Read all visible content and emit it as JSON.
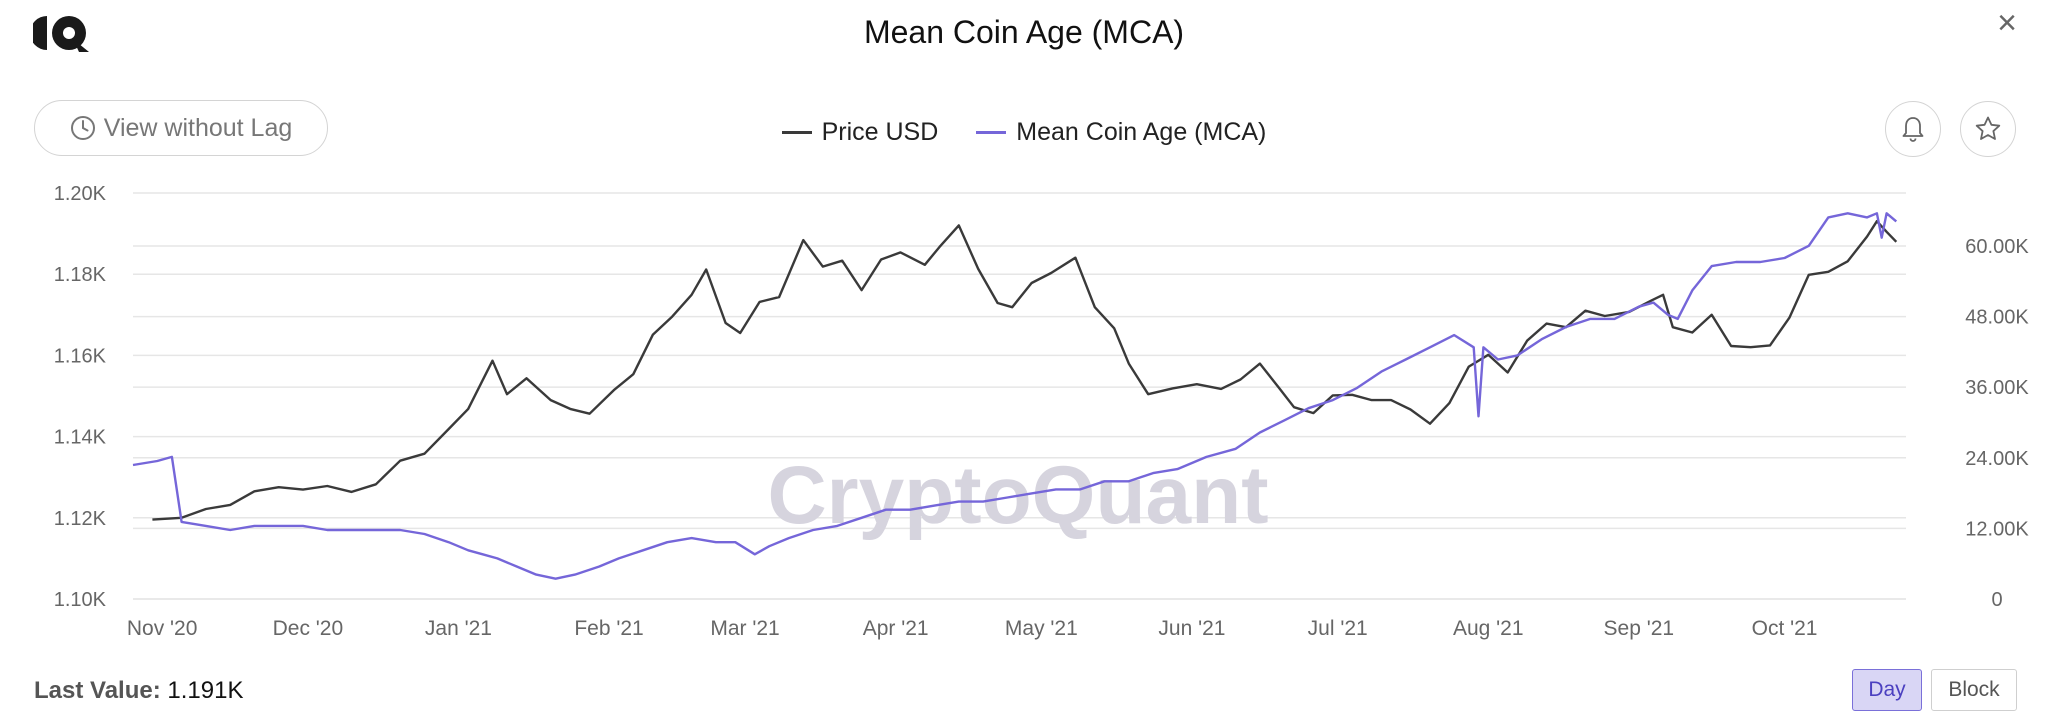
{
  "header": {
    "title": "Mean Coin Age (MCA)",
    "close_label": "×"
  },
  "toolbar": {
    "lag_button_label": "View without Lag"
  },
  "footer": {
    "last_value_label": "Last Value:",
    "last_value": "1.191K",
    "toggle_day": "Day",
    "toggle_block": "Block",
    "active_toggle": "Day"
  },
  "watermark": "CryptoQuant",
  "colors": {
    "price": "#3a3a3a",
    "mca": "#7566d9",
    "grid": "#e6e6e6",
    "axis_text": "#666666",
    "watermark": "#d6d4de"
  },
  "chart_data": {
    "type": "line",
    "title": "Mean Coin Age (MCA)",
    "x_range": [
      "2020-10-26",
      "2021-10-26"
    ],
    "x_ticks": [
      {
        "label": "Nov '20",
        "date": "2020-11-01"
      },
      {
        "label": "Dec '20",
        "date": "2020-12-01"
      },
      {
        "label": "Jan '21",
        "date": "2021-01-01"
      },
      {
        "label": "Feb '21",
        "date": "2021-02-01"
      },
      {
        "label": "Mar '21",
        "date": "2021-03-01"
      },
      {
        "label": "Apr '21",
        "date": "2021-04-01"
      },
      {
        "label": "May '21",
        "date": "2021-05-01"
      },
      {
        "label": "Jun '21",
        "date": "2021-06-01"
      },
      {
        "label": "Jul '21",
        "date": "2021-07-01"
      },
      {
        "label": "Aug '21",
        "date": "2021-08-01"
      },
      {
        "label": "Sep '21",
        "date": "2021-09-01"
      },
      {
        "label": "Oct '21",
        "date": "2021-10-01"
      }
    ],
    "y_left": {
      "min": 1100,
      "max": 1200,
      "ticks": [
        1100,
        1120,
        1140,
        1160,
        1180,
        1200
      ],
      "tick_labels": [
        "1.10K",
        "1.12K",
        "1.14K",
        "1.16K",
        "1.18K",
        "1.20K"
      ]
    },
    "y_right": {
      "min": 0,
      "max": 69000,
      "ticks": [
        0,
        12000,
        24000,
        36000,
        48000,
        60000
      ],
      "tick_labels": [
        "0",
        "12.00K",
        "24.00K",
        "36.00K",
        "48.00K",
        "60.00K"
      ]
    },
    "legend_position": "top-center",
    "grid": true,
    "series": [
      {
        "name": "Price USD",
        "axis": "right",
        "x": [
          "2020-10-30",
          "2020-11-05",
          "2020-11-10",
          "2020-11-15",
          "2020-11-20",
          "2020-11-25",
          "2020-11-30",
          "2020-12-05",
          "2020-12-10",
          "2020-12-15",
          "2020-12-20",
          "2020-12-25",
          "2020-12-30",
          "2021-01-03",
          "2021-01-08",
          "2021-01-11",
          "2021-01-15",
          "2021-01-20",
          "2021-01-24",
          "2021-01-28",
          "2021-02-02",
          "2021-02-06",
          "2021-02-10",
          "2021-02-14",
          "2021-02-18",
          "2021-02-21",
          "2021-02-25",
          "2021-02-28",
          "2021-03-04",
          "2021-03-08",
          "2021-03-13",
          "2021-03-17",
          "2021-03-21",
          "2021-03-25",
          "2021-03-29",
          "2021-04-02",
          "2021-04-07",
          "2021-04-10",
          "2021-04-14",
          "2021-04-18",
          "2021-04-22",
          "2021-04-25",
          "2021-04-29",
          "2021-05-03",
          "2021-05-08",
          "2021-05-12",
          "2021-05-16",
          "2021-05-19",
          "2021-05-23",
          "2021-05-28",
          "2021-06-02",
          "2021-06-07",
          "2021-06-11",
          "2021-06-15",
          "2021-06-19",
          "2021-06-22",
          "2021-06-26",
          "2021-06-30",
          "2021-07-04",
          "2021-07-08",
          "2021-07-12",
          "2021-07-16",
          "2021-07-20",
          "2021-07-24",
          "2021-07-28",
          "2021-08-01",
          "2021-08-05",
          "2021-08-09",
          "2021-08-13",
          "2021-08-17",
          "2021-08-21",
          "2021-08-25",
          "2021-08-30",
          "2021-09-03",
          "2021-09-06",
          "2021-09-08",
          "2021-09-12",
          "2021-09-16",
          "2021-09-20",
          "2021-09-24",
          "2021-09-28",
          "2021-10-02",
          "2021-10-06",
          "2021-10-10",
          "2021-10-14",
          "2021-10-18",
          "2021-10-20",
          "2021-10-22",
          "2021-10-24"
        ],
        "y": [
          13500,
          13800,
          15300,
          16000,
          18300,
          19000,
          18600,
          19200,
          18200,
          19500,
          23500,
          24700,
          28900,
          32300,
          40500,
          34800,
          37500,
          33800,
          32300,
          31500,
          35500,
          38200,
          44900,
          48000,
          51700,
          56000,
          46900,
          45200,
          50500,
          51300,
          61000,
          56500,
          57500,
          52500,
          57700,
          58900,
          56800,
          59800,
          63500,
          56100,
          50300,
          49600,
          53700,
          55400,
          58000,
          49600,
          46000,
          40000,
          34800,
          35800,
          36500,
          35700,
          37300,
          40000,
          35800,
          32600,
          31600,
          34600,
          34700,
          33800,
          33800,
          32200,
          29800,
          33300,
          39500,
          41500,
          38500,
          43900,
          46800,
          46200,
          49000,
          48100,
          48800,
          50500,
          51700,
          46200,
          45300,
          48300,
          43000,
          42800,
          43100,
          47800,
          55100,
          55600,
          57400,
          61600,
          64200,
          62400,
          60700
        ]
      },
      {
        "name": "Mean Coin Age (MCA)",
        "axis": "left",
        "x": [
          "2020-10-26",
          "2020-10-31",
          "2020-11-03",
          "2020-11-05",
          "2020-11-10",
          "2020-11-15",
          "2020-11-20",
          "2020-11-25",
          "2020-11-30",
          "2020-12-05",
          "2020-12-10",
          "2020-12-15",
          "2020-12-20",
          "2020-12-25",
          "2020-12-30",
          "2021-01-03",
          "2021-01-06",
          "2021-01-09",
          "2021-01-13",
          "2021-01-17",
          "2021-01-21",
          "2021-01-25",
          "2021-01-30",
          "2021-02-03",
          "2021-02-08",
          "2021-02-13",
          "2021-02-18",
          "2021-02-23",
          "2021-02-27",
          "2021-03-03",
          "2021-03-06",
          "2021-03-10",
          "2021-03-15",
          "2021-03-20",
          "2021-03-25",
          "2021-03-30",
          "2021-04-04",
          "2021-04-09",
          "2021-04-14",
          "2021-04-19",
          "2021-04-24",
          "2021-04-29",
          "2021-05-04",
          "2021-05-09",
          "2021-05-14",
          "2021-05-19",
          "2021-05-24",
          "2021-05-29",
          "2021-06-04",
          "2021-06-10",
          "2021-06-15",
          "2021-06-20",
          "2021-06-25",
          "2021-06-30",
          "2021-07-05",
          "2021-07-10",
          "2021-07-15",
          "2021-07-20",
          "2021-07-25",
          "2021-07-29",
          "2021-07-30",
          "2021-07-31",
          "2021-08-03",
          "2021-08-07",
          "2021-08-12",
          "2021-08-17",
          "2021-08-22",
          "2021-08-27",
          "2021-09-01",
          "2021-09-04",
          "2021-09-07",
          "2021-09-09",
          "2021-09-12",
          "2021-09-16",
          "2021-09-21",
          "2021-09-26",
          "2021-10-01",
          "2021-10-06",
          "2021-10-10",
          "2021-10-14",
          "2021-10-18",
          "2021-10-20",
          "2021-10-21",
          "2021-10-22",
          "2021-10-24"
        ],
        "y": [
          1133,
          1134,
          1135,
          1119,
          1118,
          1117,
          1118,
          1118,
          1118,
          1117,
          1117,
          1117,
          1117,
          1116,
          1114,
          1112,
          1111,
          1110,
          1108,
          1106,
          1105,
          1106,
          1108,
          1110,
          1112,
          1114,
          1115,
          1114,
          1114,
          1111,
          1113,
          1115,
          1117,
          1118,
          1120,
          1122,
          1122,
          1123,
          1124,
          1124,
          1125,
          1126,
          1127,
          1127,
          1129,
          1129,
          1131,
          1132,
          1135,
          1137,
          1141,
          1144,
          1147,
          1149,
          1152,
          1156,
          1159,
          1162,
          1165,
          1162,
          1145,
          1162,
          1159,
          1160,
          1164,
          1167,
          1169,
          1169,
          1172,
          1173,
          1170,
          1169,
          1176,
          1182,
          1183,
          1183,
          1184,
          1187,
          1194,
          1195,
          1194,
          1195,
          1189,
          1195,
          1193
        ]
      }
    ]
  }
}
